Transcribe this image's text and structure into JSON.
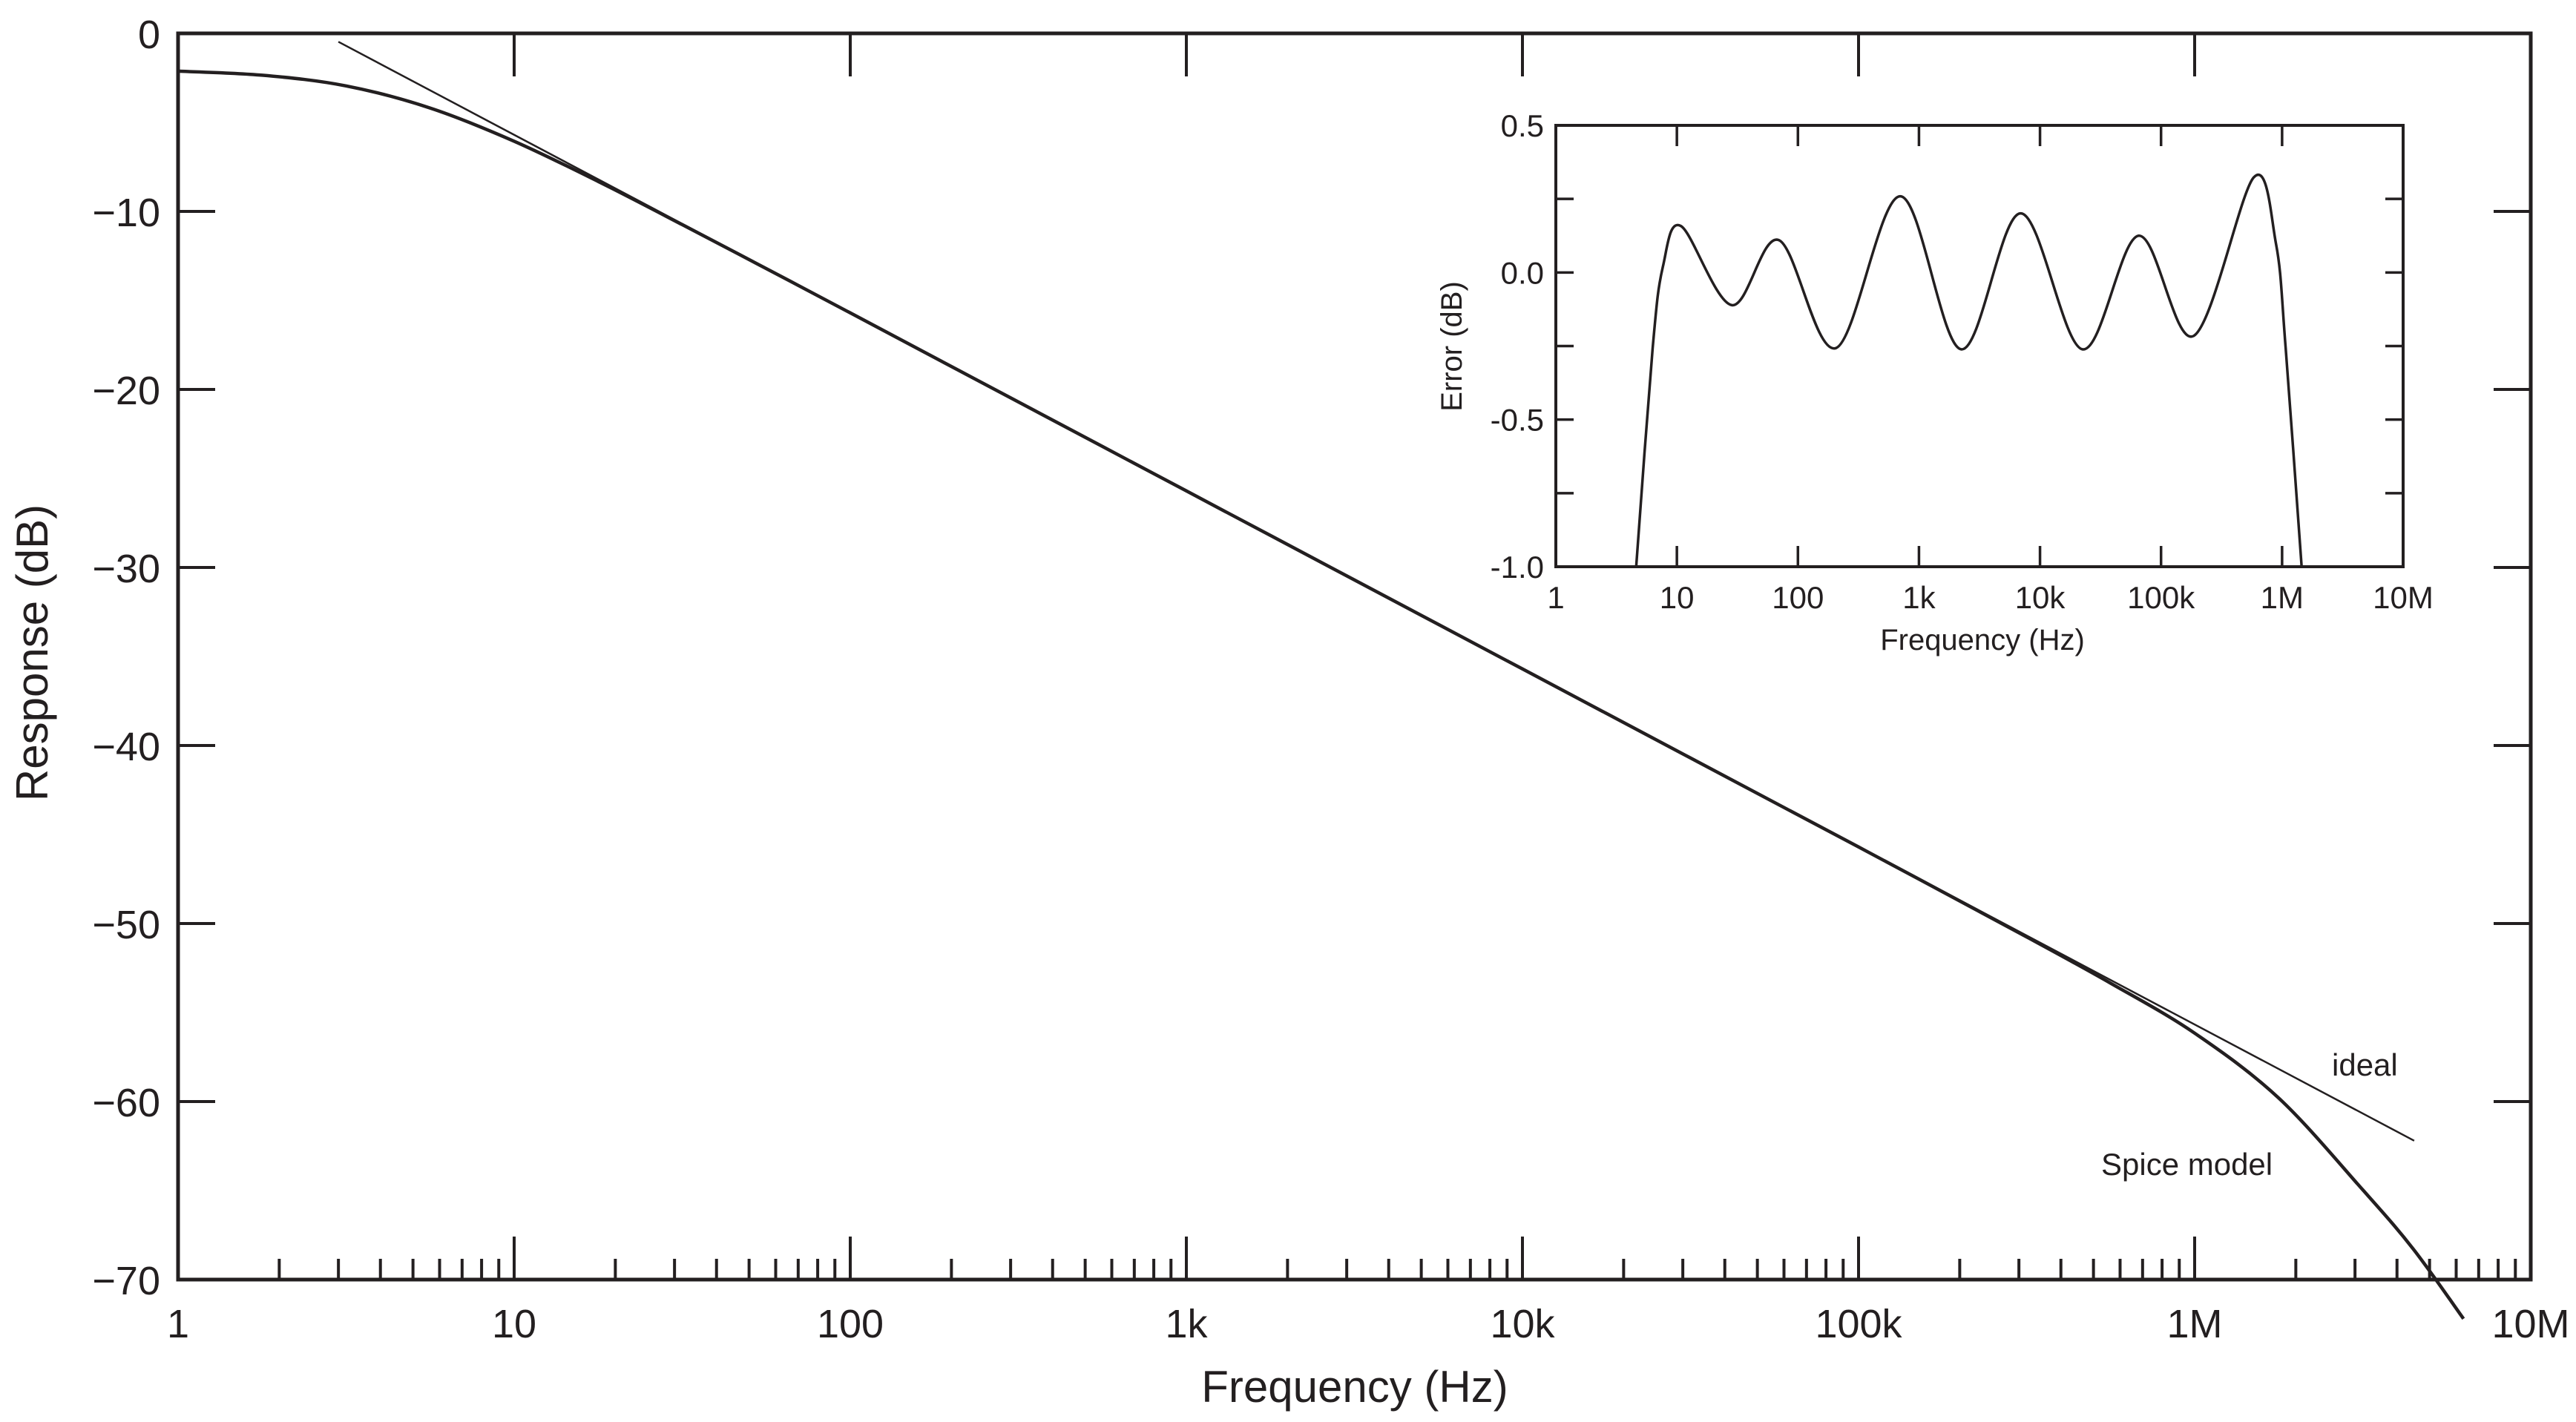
{
  "chart_data": [
    {
      "type": "line",
      "xlabel": "Frequency (Hz)",
      "ylabel": "Response (dB)",
      "xscale": "log",
      "xlim": [
        1,
        10000000
      ],
      "ylim": [
        -70,
        0
      ],
      "grid": false,
      "x_tick_labels": [
        "1",
        "10",
        "100",
        "1k",
        "10k",
        "100k",
        "1M",
        "10M"
      ],
      "y_tick_labels": [
        "0",
        "−10",
        "−20",
        "−30",
        "−40",
        "−50",
        "−60",
        "−70"
      ],
      "y_ticks": [
        0,
        -10,
        -20,
        -30,
        -40,
        -50,
        -60,
        -70
      ],
      "series": [
        {
          "name": "ideal",
          "x": [
            3,
            4500000
          ],
          "y": [
            -0.47,
            -62.2
          ]
        },
        {
          "name": "Spice model",
          "x": [
            1,
            1.78,
            3.16,
            5.62,
            10,
            17.8,
            31.6,
            56.2,
            100,
            316,
            1000,
            3160,
            10000,
            31600,
            100000,
            316000,
            562000,
            1000000,
            1780000,
            3160000,
            4470000,
            6310000
          ],
          "y": [
            -2.12,
            -2.35,
            -2.95,
            -4.19,
            -6.06,
            -8.32,
            -10.74,
            -13.21,
            -15.7,
            -20.7,
            -25.7,
            -30.7,
            -35.7,
            -40.7,
            -45.7,
            -50.75,
            -53.35,
            -56.16,
            -59.81,
            -64.95,
            -68.28,
            -72.2
          ]
        }
      ]
    },
    {
      "type": "line",
      "xlabel": "Frequency (Hz)",
      "ylabel": "Error (dB)",
      "xscale": "log",
      "xlim": [
        1,
        10000000
      ],
      "ylim": [
        -1.0,
        0.5
      ],
      "grid": false,
      "x_tick_labels": [
        "1",
        "10",
        "100",
        "1k",
        "10k",
        "100k",
        "1M",
        "10M"
      ],
      "y_tick_labels": [
        "0.5",
        "0.0",
        "-0.5",
        "-1.0"
      ],
      "y_ticks": [
        0.5,
        0.0,
        -0.5,
        -1.0
      ],
      "series": [
        {
          "x": [
            4.61,
            6.31,
            7.67,
            10.8,
            28.5,
            69.7,
            206,
            700,
            2230,
            6920,
            22400,
            65300,
            185000,
            583000,
            891000,
            1070000,
            1450000
          ],
          "y": [
            -1.0,
            -0.257,
            0.02,
            0.158,
            -0.111,
            0.11,
            -0.257,
            0.259,
            -0.261,
            0.201,
            -0.261,
            0.125,
            -0.216,
            0.323,
            0.097,
            -0.257,
            -1.0
          ]
        }
      ]
    }
  ],
  "annotations": {
    "ideal_label": "ideal",
    "spice_label": "Spice model"
  },
  "colors": {
    "line": "#231f20",
    "background": "#ffffff"
  }
}
